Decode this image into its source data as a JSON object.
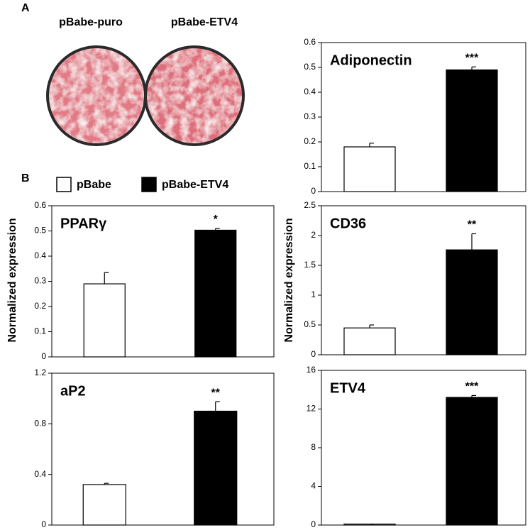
{
  "panel_labels": [
    "A",
    "B"
  ],
  "plate_labels": [
    "pBabe-puro",
    "pBabe-ETV4"
  ],
  "legend": [
    {
      "name": "pBabe",
      "color": "#ffffff"
    },
    {
      "name": "pBabe-ETV4",
      "color": "#000000"
    }
  ],
  "axis_labels": [
    "Normalized expression",
    "Normalized expression"
  ],
  "chart_data": [
    {
      "type": "bar",
      "title": "Adiponectin",
      "values": [
        0.18,
        0.49
      ],
      "errors": [
        0.015,
        0.012
      ],
      "significance": [
        null,
        "***"
      ],
      "ylim": [
        0,
        0.6
      ],
      "yticks": [
        0,
        0.1,
        0.2,
        0.3,
        0.4,
        0.5,
        0.6
      ]
    },
    {
      "type": "bar",
      "title": "PPARγ",
      "values": [
        0.29,
        0.503
      ],
      "errors": [
        0.045,
        0.007
      ],
      "significance": [
        null,
        "*"
      ],
      "ylim": [
        0,
        0.6
      ],
      "yticks": [
        0,
        0.1,
        0.2,
        0.3,
        0.4,
        0.5,
        0.6
      ]
    },
    {
      "type": "bar",
      "title": "aP2",
      "values": [
        0.32,
        0.9
      ],
      "errors": [
        0.01,
        0.075
      ],
      "significance": [
        null,
        "**"
      ],
      "ylim": [
        0,
        1.2
      ],
      "yticks": [
        0,
        0.4,
        0.8,
        1.2
      ]
    },
    {
      "type": "bar",
      "title": "CD36",
      "values": [
        0.45,
        1.76
      ],
      "errors": [
        0.05,
        0.27
      ],
      "significance": [
        null,
        "**"
      ],
      "ylim": [
        0,
        2.5
      ],
      "yticks": [
        0,
        0.5,
        1,
        1.5,
        2,
        2.5
      ]
    },
    {
      "type": "bar",
      "title": "ETV4",
      "values": [
        0.1,
        13.2
      ],
      "errors": [
        0,
        0.2
      ],
      "significance": [
        null,
        "***"
      ],
      "ylim": [
        0,
        16
      ],
      "yticks": [
        0,
        4,
        8,
        12,
        16
      ]
    }
  ]
}
